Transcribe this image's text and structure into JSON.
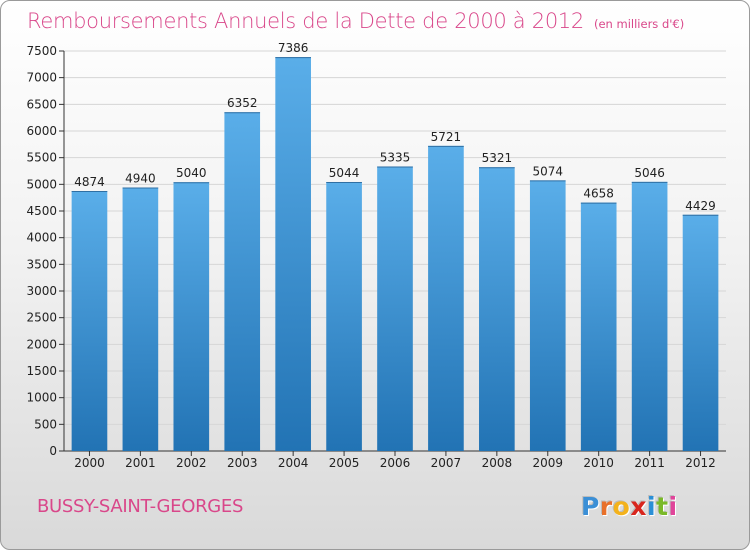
{
  "title": "Remboursements Annuels de la Dette de 2000 à 2012",
  "subtitle": "(en milliers d'€)",
  "town": "BUSSY-SAINT-GEORGES",
  "brand": {
    "letters": [
      "P",
      "r",
      "o",
      "x",
      "i",
      "t",
      "i"
    ],
    "colors": [
      "#3b8fd6",
      "#e8702a",
      "#f3b21c",
      "#d8261e",
      "#2a8fd6",
      "#7ab929",
      "#e0449a"
    ]
  },
  "colors": {
    "title": "#d9478a",
    "bar_top": "#5aaee9",
    "bar_bottom": "#2273b4"
  },
  "chart_data": {
    "type": "bar",
    "title": "Remboursements Annuels de la Dette de 2000 à 2012",
    "subtitle": "(en milliers d'€)",
    "categories": [
      "2000",
      "2001",
      "2002",
      "2003",
      "2004",
      "2005",
      "2006",
      "2007",
      "2008",
      "2009",
      "2010",
      "2011",
      "2012"
    ],
    "values": [
      4874,
      4940,
      5040,
      6352,
      7386,
      5044,
      5335,
      5721,
      5321,
      5074,
      4658,
      5046,
      4429
    ],
    "yticks": [
      0,
      500,
      1000,
      1500,
      2000,
      2500,
      3000,
      3500,
      4000,
      4500,
      5000,
      5500,
      6000,
      6500,
      7000,
      7500
    ],
    "ylim": [
      0,
      7500
    ],
    "grid": true,
    "xlabel": "",
    "ylabel": ""
  }
}
